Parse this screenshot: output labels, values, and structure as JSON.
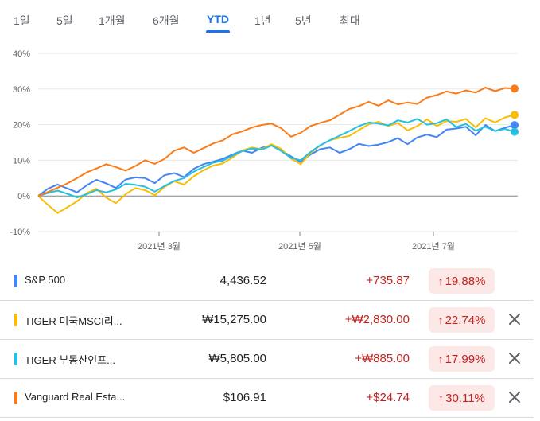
{
  "range_tabs": [
    "1일",
    "5일",
    "1개월",
    "6개월",
    "YTD",
    "1년",
    "5년",
    "최대"
  ],
  "active_tab": "YTD",
  "chart_data": {
    "type": "line",
    "ylim": [
      -10,
      40
    ],
    "y_ticks": [
      "40%",
      "30%",
      "20%",
      "10%",
      "0%",
      "-10%"
    ],
    "x_tick_labels": [
      "2021년 3월",
      "2021년 5월",
      "2021년 7월"
    ],
    "grid": true,
    "series": [
      {
        "name": "S&P 500",
        "color": "#4285f4",
        "values": [
          0,
          2.0,
          3.2,
          2.1,
          1.0,
          3.0,
          4.5,
          3.5,
          2.2,
          4.6,
          5.2,
          5.0,
          3.6,
          5.8,
          6.4,
          5.3,
          7.6,
          8.9,
          9.6,
          10.4,
          11.6,
          12.7,
          12.1,
          13.5,
          14.2,
          12.8,
          11.1,
          9.5,
          11.6,
          13.1,
          13.6,
          12.1,
          13.1,
          14.6,
          14.0,
          14.4,
          15.1,
          16.2,
          14.5,
          16.4,
          17.2,
          16.5,
          18.6,
          18.9,
          19.4,
          17.0,
          19.9,
          18.2,
          19.1,
          19.88
        ]
      },
      {
        "name": "TIGER 미국MSCI리...",
        "color": "#fbbc04",
        "values": [
          0,
          -2.5,
          -4.8,
          -3.2,
          -1.5,
          0.8,
          2.0,
          -0.5,
          -2.0,
          0.5,
          2.2,
          1.6,
          0.2,
          2.5,
          4.1,
          3.2,
          5.5,
          7.2,
          8.5,
          9.1,
          10.8,
          12.8,
          13.6,
          13.1,
          14.5,
          13.2,
          10.5,
          8.9,
          12.0,
          14.1,
          15.6,
          16.3,
          16.8,
          18.5,
          20.1,
          20.8,
          19.6,
          20.5,
          18.4,
          19.6,
          21.5,
          19.6,
          21.0,
          20.8,
          21.6,
          19.2,
          21.8,
          20.6,
          22.0,
          22.74
        ]
      },
      {
        "name": "TIGER 부동산인프...",
        "color": "#24c1e0",
        "values": [
          0,
          0.8,
          1.5,
          0.6,
          -0.4,
          0.5,
          1.6,
          1.0,
          1.8,
          3.4,
          3.1,
          2.6,
          1.2,
          2.8,
          4.2,
          5.0,
          6.8,
          8.1,
          9.3,
          9.9,
          11.3,
          12.6,
          13.3,
          13.0,
          14.1,
          12.6,
          10.7,
          10.0,
          12.3,
          14.2,
          15.6,
          16.9,
          18.2,
          19.6,
          20.6,
          20.3,
          19.8,
          21.2,
          20.6,
          21.6,
          20.0,
          20.4,
          21.5,
          19.3,
          20.2,
          18.3,
          19.4,
          18.2,
          18.8,
          17.99
        ]
      },
      {
        "name": "Vanguard Real Esta...",
        "color": "#fa7b17",
        "values": [
          0,
          1.1,
          2.3,
          3.5,
          5.0,
          6.6,
          7.7,
          8.9,
          8.1,
          7.1,
          8.4,
          10.0,
          9.0,
          10.4,
          12.7,
          13.6,
          12.1,
          13.4,
          14.7,
          15.6,
          17.3,
          18.1,
          19.2,
          19.9,
          20.3,
          19.0,
          16.6,
          17.7,
          19.6,
          20.5,
          21.2,
          22.8,
          24.4,
          25.2,
          26.4,
          25.3,
          26.8,
          25.7,
          26.2,
          25.8,
          27.6,
          28.3,
          29.3,
          28.7,
          29.6,
          29.0,
          30.4,
          29.4,
          30.3,
          30.11
        ]
      }
    ]
  },
  "holdings": [
    {
      "name": "S&P 500",
      "color": "#4285f4",
      "price": "4,436.52",
      "change": "+735.87",
      "percent": "19.88%",
      "removable": false
    },
    {
      "name": "TIGER 미국MSCI리...",
      "color": "#fbbc04",
      "price": "₩15,275.00",
      "change": "+₩2,830.00",
      "percent": "22.74%",
      "removable": true
    },
    {
      "name": "TIGER 부동산인프...",
      "color": "#24c1e0",
      "price": "₩5,805.00",
      "change": "+₩885.00",
      "percent": "17.99%",
      "removable": true
    },
    {
      "name": "Vanguard Real Esta...",
      "color": "#fa7b17",
      "price": "$106.91",
      "change": "+$24.74",
      "percent": "30.11%",
      "removable": true
    }
  ],
  "icons": {
    "up_arrow": "arrow-up-icon",
    "close": "close-icon"
  }
}
